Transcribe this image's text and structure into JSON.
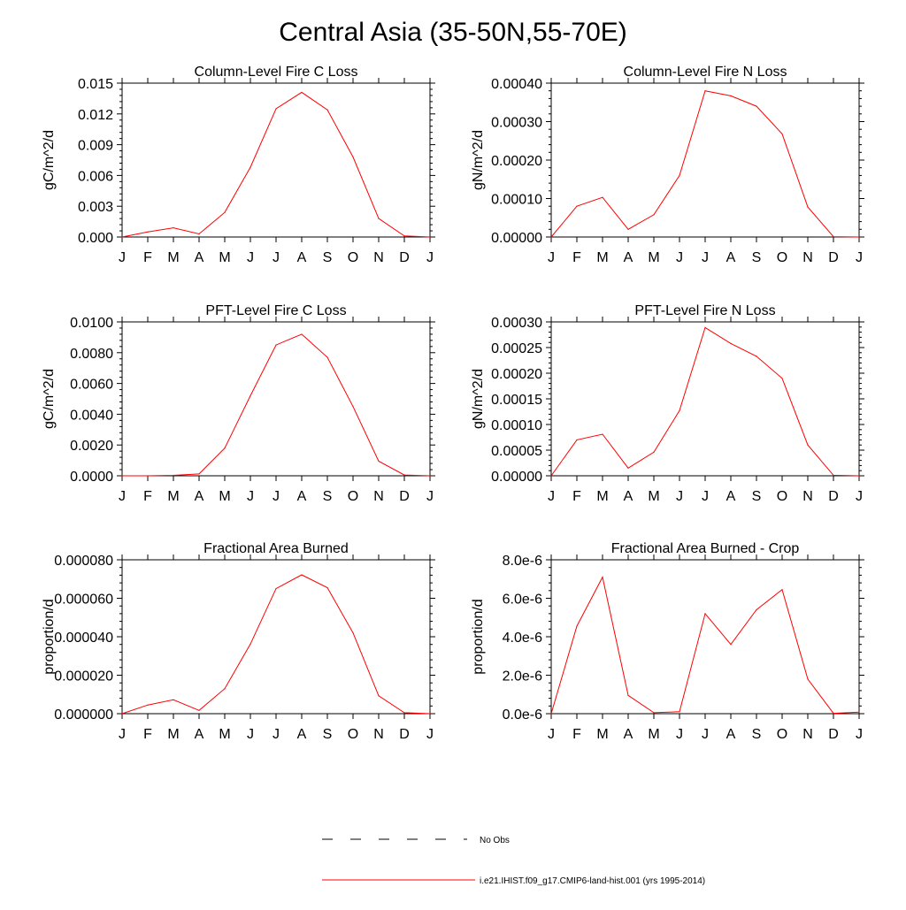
{
  "figure": {
    "title": "Central Asia (35-50N,55-70E)"
  },
  "months": [
    "J",
    "F",
    "M",
    "A",
    "M",
    "J",
    "J",
    "A",
    "S",
    "O",
    "N",
    "D",
    "J"
  ],
  "colors": {
    "model": "#ff0000",
    "obs": "#000000",
    "axis": "#000000"
  },
  "legend": {
    "placement": "bottom-center",
    "entries": [
      {
        "label": "No Obs",
        "style": "dashed",
        "color": "#000000"
      },
      {
        "label": "i.e21.IHIST.f09_g17.CMIP6-land-hist.001 (yrs 1995-2014)",
        "style": "solid",
        "color": "#ff0000"
      }
    ]
  },
  "chart_data": [
    {
      "type": "line",
      "title": "Column-Level Fire C Loss",
      "ylabel": "gC/m^2/d",
      "ylim": [
        0,
        0.015
      ],
      "yticks": [
        0,
        0.003,
        0.006,
        0.009,
        0.012,
        0.015
      ],
      "ytick_labels": [
        "0.000",
        "0.003",
        "0.006",
        "0.009",
        "0.012",
        "0.015"
      ],
      "series": [
        {
          "values": [
            0,
            0.0005,
            0.0009,
            0.0003,
            0.0024,
            0.0068,
            0.0125,
            0.0141,
            0.0124,
            0.0078,
            0.0018,
            0.0001,
            0
          ]
        }
      ]
    },
    {
      "type": "line",
      "title": "Column-Level Fire N Loss",
      "ylabel": "gN/m^2/d",
      "ylim": [
        0,
        0.0004
      ],
      "yticks": [
        0,
        0.0001,
        0.0002,
        0.0003,
        0.0004
      ],
      "ytick_labels": [
        "0.00000",
        "0.00010",
        "0.00020",
        "0.00030",
        "0.00040"
      ],
      "series": [
        {
          "values": [
            0,
            8e-05,
            0.000103,
            2e-05,
            5.8e-05,
            0.00016,
            0.00038,
            0.000367,
            0.00034,
            0.000268,
            7.8e-05,
            1e-06,
            0
          ]
        }
      ]
    },
    {
      "type": "line",
      "title": "PFT-Level Fire C Loss",
      "ylabel": "gC/m^2/d",
      "ylim": [
        0,
        0.01
      ],
      "yticks": [
        0,
        0.002,
        0.004,
        0.006,
        0.008,
        0.01
      ],
      "ytick_labels": [
        "0.0000",
        "0.0020",
        "0.0040",
        "0.0060",
        "0.0080",
        "0.0100"
      ],
      "series": [
        {
          "values": [
            0,
            0,
            3e-05,
            0.00012,
            0.0018,
            0.0052,
            0.0085,
            0.0092,
            0.0077,
            0.0045,
            0.00095,
            5e-05,
            0
          ]
        }
      ]
    },
    {
      "type": "line",
      "title": "PFT-Level Fire N Loss",
      "ylabel": "gN/m^2/d",
      "ylim": [
        0,
        0.0003
      ],
      "yticks": [
        0,
        5e-05,
        0.0001,
        0.00015,
        0.0002,
        0.00025,
        0.0003
      ],
      "ytick_labels": [
        "0.00000",
        "0.00005",
        "0.00010",
        "0.00015",
        "0.00020",
        "0.00025",
        "0.00030"
      ],
      "series": [
        {
          "values": [
            0,
            7e-05,
            8.1e-05,
            1.5e-05,
            4.6e-05,
            0.000127,
            0.000289,
            0.000258,
            0.000233,
            0.00019,
            6e-05,
            1e-06,
            0
          ]
        }
      ]
    },
    {
      "type": "line",
      "title": "Fractional Area Burned",
      "ylabel": "proportion/d",
      "ylim": [
        0,
        8e-05
      ],
      "yticks": [
        0,
        2e-05,
        4e-05,
        6e-05,
        8e-05
      ],
      "ytick_labels": [
        "0.000000",
        "0.000020",
        "0.000040",
        "0.000060",
        "0.000080"
      ],
      "series": [
        {
          "values": [
            0,
            4.5e-06,
            7.2e-06,
            1.7e-06,
            1.3e-05,
            3.62e-05,
            6.5e-05,
            7.22e-05,
            6.55e-05,
            4.2e-05,
            9.3e-06,
            5e-07,
            0
          ]
        }
      ]
    },
    {
      "type": "line",
      "title": "Fractional Area Burned - Crop",
      "ylabel": "proportion/d",
      "ylim": [
        0,
        8e-06
      ],
      "yticks": [
        0,
        2e-06,
        4e-06,
        6e-06,
        8e-06
      ],
      "ytick_labels": [
        "0.0e-6",
        "2.0e-6",
        "4.0e-6",
        "6.0e-6",
        "8.0e-6"
      ],
      "series": [
        {
          "values": [
            0,
            4.55e-06,
            7.1e-06,
            9.5e-07,
            5e-08,
            1e-07,
            5.2e-06,
            3.6e-06,
            5.4e-06,
            6.45e-06,
            1.8e-06,
            2e-08,
            8e-08
          ]
        }
      ]
    }
  ]
}
